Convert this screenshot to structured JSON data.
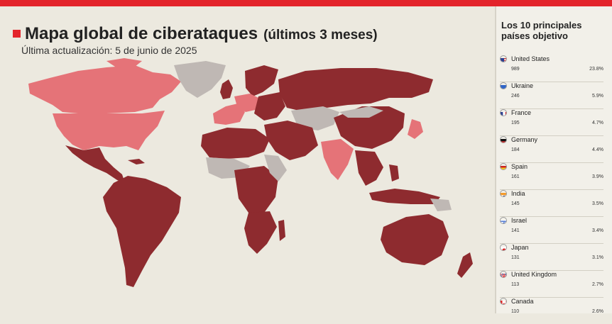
{
  "header": {
    "title": "Mapa global de ciberataques",
    "title_suffix": "(últimos 3 meses)",
    "updated": "Última actualización: 5 de junio de 2025"
  },
  "legend": {
    "colors": {
      "high": "#8e2b2f",
      "medium": "#e57378",
      "none": "#bfb8b4",
      "accent": "#e3242b"
    }
  },
  "sidebar": {
    "title": "Los 10 principales países objetivo",
    "countries": [
      {
        "name": "United States",
        "count": "989",
        "pct": "23.8%",
        "flag": "us-flag"
      },
      {
        "name": "Ukraine",
        "count": "246",
        "pct": "5.9%",
        "flag": "ua-flag"
      },
      {
        "name": "France",
        "count": "195",
        "pct": "4.7%",
        "flag": "fr-flag"
      },
      {
        "name": "Germany",
        "count": "184",
        "pct": "4.4%",
        "flag": "de-flag"
      },
      {
        "name": "Spain",
        "count": "161",
        "pct": "3.9%",
        "flag": "es-flag"
      },
      {
        "name": "India",
        "count": "145",
        "pct": "3.5%",
        "flag": "in-flag"
      },
      {
        "name": "Israel",
        "count": "141",
        "pct": "3.4%",
        "flag": "il-flag"
      },
      {
        "name": "Japan",
        "count": "131",
        "pct": "3.1%",
        "flag": "jp-flag"
      },
      {
        "name": "United Kingdom",
        "count": "113",
        "pct": "2.7%",
        "flag": "gb-flag"
      },
      {
        "name": "Canada",
        "count": "110",
        "pct": "2.6%",
        "flag": "ca-flag"
      }
    ]
  }
}
